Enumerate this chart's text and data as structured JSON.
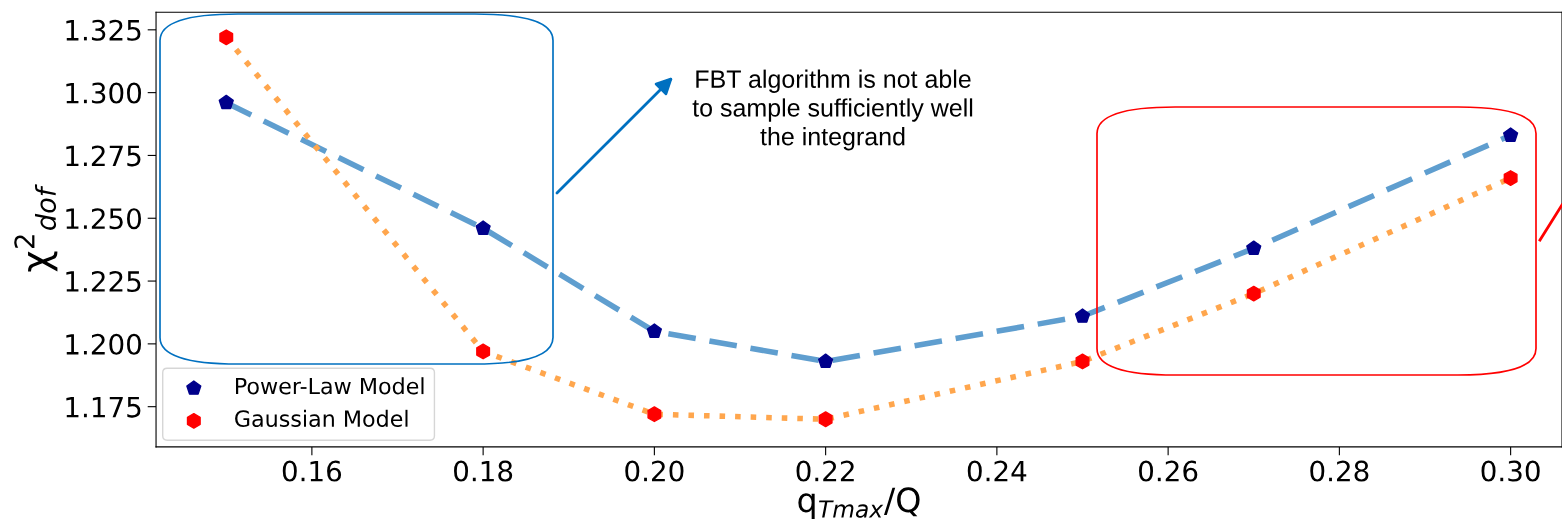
{
  "chart_data": {
    "type": "line",
    "xlabel": "q$_{Tmax}$/Q",
    "ylabel": "χ$^{2}$$_{dof}$",
    "annotations": [
      "FBT algorithm is not able to sample sufficiently well the integrand"
    ],
    "series": [
      {
        "color": "#5f9ecf",
        "line_style": "dashed",
        "x": [
          0.15,
          0.18,
          0.2,
          0.22,
          0.25,
          0.27,
          0.3
        ],
        "values": [
          1.296,
          1.246,
          1.205,
          1.193,
          1.211,
          1.238,
          1.283
        ]
      },
      {
        "color": "#ffa64d",
        "line_style": "dotted",
        "x": [
          0.15,
          0.18,
          0.2,
          0.22,
          0.25,
          0.27,
          0.3
        ],
        "values": [
          1.322,
          1.197,
          1.172,
          1.17,
          1.193,
          1.22,
          1.266
        ]
      },
      {
        "type": "scatter",
        "name": "Power-Law Model",
        "color": "#00008b",
        "x": [
          0.15,
          0.18,
          0.2,
          0.22,
          0.25,
          0.27,
          0.3
        ],
        "values": [
          1.296,
          1.246,
          1.205,
          1.193,
          1.211,
          1.238,
          1.283
        ]
      },
      {
        "type": "scatter",
        "name": "Gaussian Model",
        "color": "#ff0000",
        "x": [
          0.15,
          0.18,
          0.2,
          0.22,
          0.25,
          0.27,
          0.3
        ],
        "values": [
          1.322,
          1.197,
          1.172,
          1.17,
          1.193,
          1.22,
          1.266
        ]
      }
    ],
    "xlim": [
      0.1418,
      0.306
    ],
    "ylim": [
      1.159,
      1.332
    ],
    "xticks": [
      {
        "value": 0.16,
        "label": "0.16"
      },
      {
        "value": 0.18,
        "label": "0.18"
      },
      {
        "value": 0.2,
        "label": "0.20"
      },
      {
        "value": 0.22,
        "label": "0.22"
      },
      {
        "value": 0.24,
        "label": "0.24"
      },
      {
        "value": 0.26,
        "label": "0.26"
      },
      {
        "value": 0.28,
        "label": "0.28"
      },
      {
        "value": 0.3,
        "label": "0.30"
      }
    ],
    "yticks": [
      {
        "value": 1.175,
        "label": "1.175"
      },
      {
        "value": 1.2,
        "label": "1.200"
      },
      {
        "value": 1.225,
        "label": "1.225"
      },
      {
        "value": 1.25,
        "label": "1.250"
      },
      {
        "value": 1.275,
        "label": "1.275"
      },
      {
        "value": 1.3,
        "label": "1.300"
      },
      {
        "value": 1.325,
        "label": "1.325"
      }
    ],
    "grid": false,
    "legend": "bottom left"
  }
}
